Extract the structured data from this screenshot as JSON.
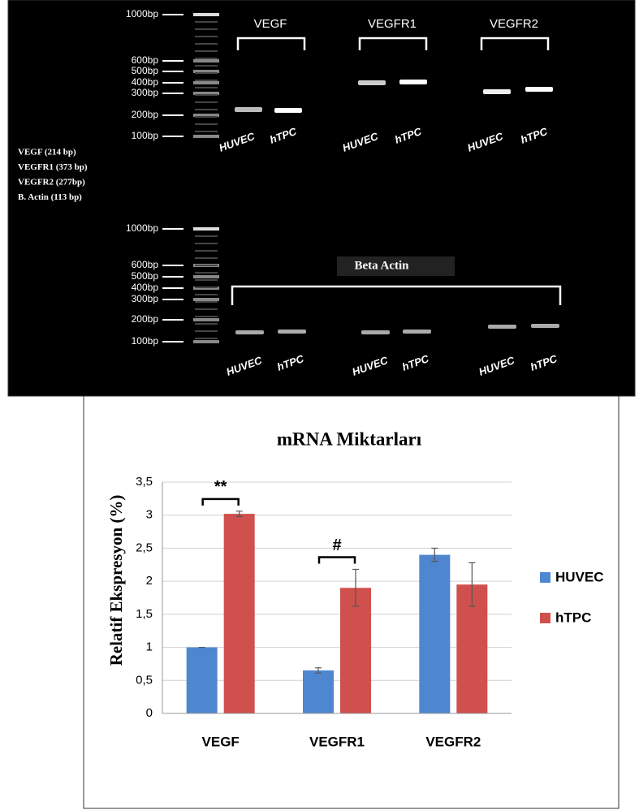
{
  "gel": {
    "legend": [
      "VEGF (214 bp)",
      "VEGFR1 (373 bp)",
      "VEGFR2 (277bp)",
      "B. Actin (113 bp)"
    ],
    "top": {
      "ladder": [
        "1000bp",
        "600bp",
        "500bp",
        "400bp",
        "300bp",
        "200bp",
        "100bp"
      ],
      "groups": [
        {
          "name": "VEGF",
          "lanes": [
            "HUVEC",
            "hTPC"
          ]
        },
        {
          "name": "VEGFR1",
          "lanes": [
            "HUVEC",
            "hTPC"
          ]
        },
        {
          "name": "VEGFR2",
          "lanes": [
            "HUVEC",
            "hTPC"
          ]
        }
      ]
    },
    "bottom": {
      "title": "Beta Actin",
      "ladder": [
        "1000bp",
        "600bp",
        "500bp",
        "400bp",
        "300bp",
        "200bp",
        "100bp"
      ],
      "lanes": [
        [
          "HUVEC",
          "hTPC"
        ],
        [
          "HUVEC",
          "hTPC"
        ],
        [
          "HUVEC",
          "hTPC"
        ]
      ]
    }
  },
  "chart_data": {
    "type": "bar",
    "title": "mRNA Miktarları",
    "y_label": "Relatif Ekspresyon  (%)",
    "categories": [
      "VEGF",
      "VEGFR1",
      "VEGFR2"
    ],
    "series": [
      {
        "name": "HUVEC",
        "color": "#4f86d0",
        "values": [
          1.0,
          0.65,
          2.4
        ],
        "errors": [
          0.0,
          0.04,
          0.1
        ]
      },
      {
        "name": "hTPC",
        "color": "#d0504d",
        "values": [
          3.02,
          1.9,
          1.95
        ],
        "errors": [
          0.04,
          0.28,
          0.33
        ]
      }
    ],
    "ylim": [
      0,
      3.5
    ],
    "yticks": [
      0,
      {
        "value": 0.5,
        "label": "0,5"
      },
      1,
      {
        "value": 1.5,
        "label": "1,5"
      },
      2,
      {
        "value": 2.5,
        "label": "2,5"
      },
      3,
      {
        "value": 3.5,
        "label": "3,5"
      }
    ],
    "grid": true,
    "legend": "right",
    "annotations": [
      {
        "text": "**",
        "category": 0
      },
      {
        "text": "#",
        "category": 1
      }
    ]
  }
}
